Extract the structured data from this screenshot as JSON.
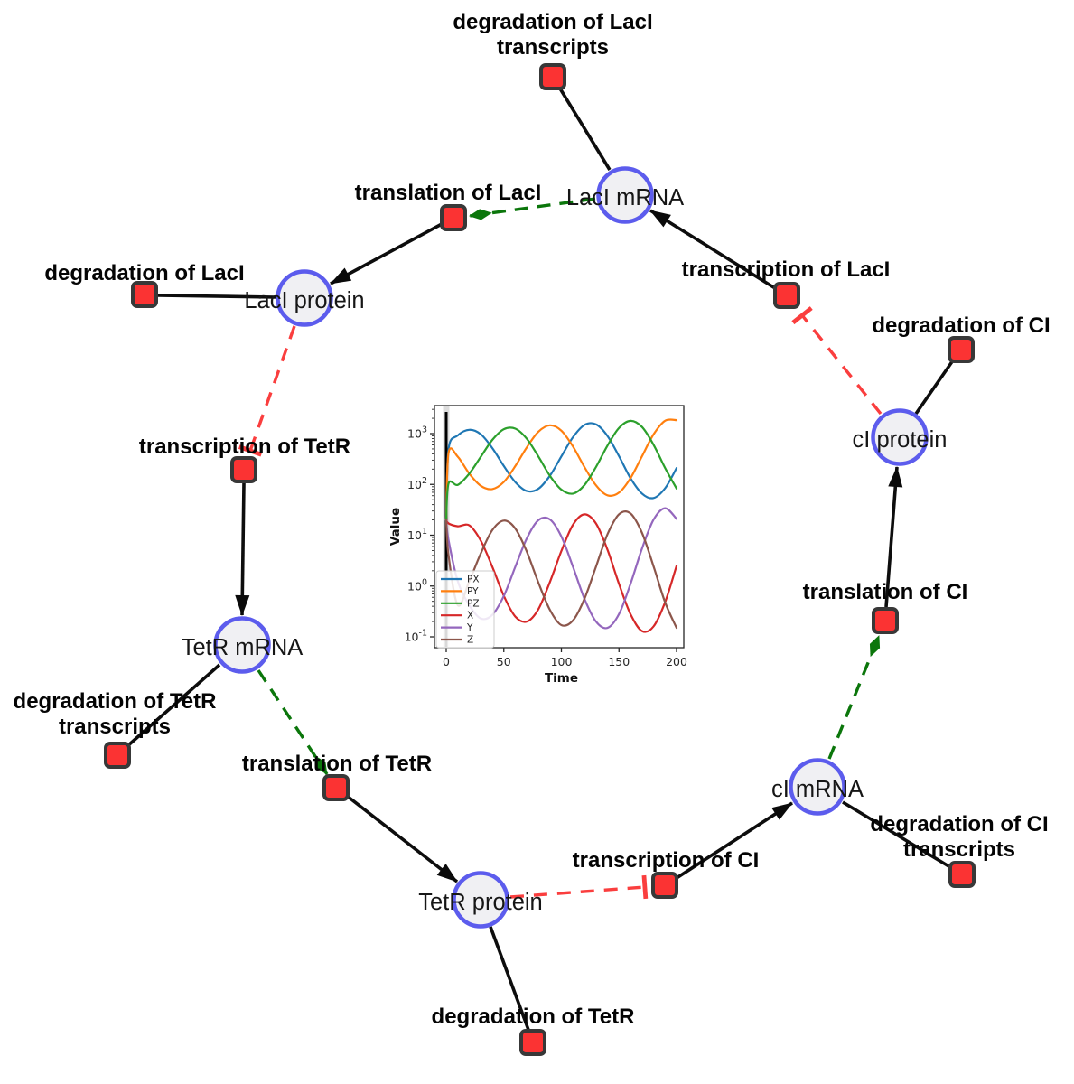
{
  "network": {
    "species": [
      {
        "id": "laci-mrna",
        "label": "LacI mRNA"
      },
      {
        "id": "laci-protein",
        "label": "LacI protein"
      },
      {
        "id": "tetr-mrna",
        "label": "TetR mRNA"
      },
      {
        "id": "tetr-protein",
        "label": "TetR protein"
      },
      {
        "id": "ci-mrna",
        "label": "cI mRNA"
      },
      {
        "id": "ci-protein",
        "label": "cI protein"
      }
    ],
    "reactions": [
      {
        "id": "degradation-laci-transcripts",
        "label": "degradation of LacI",
        "label2": "transcripts"
      },
      {
        "id": "translation-laci",
        "label": "translation of LacI"
      },
      {
        "id": "degradation-laci",
        "label": "degradation of LacI"
      },
      {
        "id": "transcription-laci",
        "label": "transcription of LacI"
      },
      {
        "id": "degradation-ci",
        "label": "degradation of CI"
      },
      {
        "id": "transcription-tetr",
        "label": "transcription of TetR"
      },
      {
        "id": "degradation-tetr-transcripts",
        "label": "degradation of TetR",
        "label2": "transcripts"
      },
      {
        "id": "translation-tetr",
        "label": "translation of TetR"
      },
      {
        "id": "degradation-tetr",
        "label": "degradation of TetR"
      },
      {
        "id": "transcription-ci",
        "label": "transcription of CI"
      },
      {
        "id": "degradation-ci-transcripts",
        "label": "degradation of CI",
        "label2": "transcripts"
      },
      {
        "id": "translation-ci",
        "label": "translation of CI"
      }
    ],
    "colors": {
      "species_fill": "#f0f0f3",
      "species_border": "#5c5ced",
      "reaction_fill": "#fb3333",
      "reaction_border": "#383838",
      "consumption_edge": "#0d0d0d",
      "modifier_edge": "#0b760b",
      "inhibition_edge": "#fa3e3e"
    }
  },
  "chart_data": {
    "type": "line",
    "title": "",
    "xlabel": "Time",
    "ylabel": "Value",
    "y_scale": "log",
    "x_ticks": [
      0,
      50,
      100,
      150,
      200
    ],
    "y_tick_exponents": [
      3,
      2,
      1,
      0,
      -1
    ],
    "xlim": [
      -12,
      206
    ],
    "ylim": [
      0.06,
      4000
    ],
    "grid": false,
    "legend_position": "lower left",
    "vline_x": 0,
    "x": [
      0,
      2,
      10,
      20,
      30,
      40,
      50,
      60,
      70,
      80,
      90,
      100,
      110,
      120,
      130,
      140,
      150,
      160,
      170,
      180,
      190,
      200
    ],
    "series": [
      {
        "name": "PX",
        "color": "#1f77b4",
        "values": [
          20,
          500,
          920,
          1190,
          970,
          520,
          230,
          111,
          74,
          82,
          148,
          356,
          850,
          1480,
          1520,
          900,
          360,
          133,
          66,
          54,
          84,
          210
        ]
      },
      {
        "name": "PY",
        "color": "#ff7f0e",
        "values": [
          20,
          420,
          350,
          163,
          94,
          81,
          112,
          230,
          540,
          1090,
          1455,
          1140,
          560,
          220,
          96,
          61,
          69,
          133,
          360,
          965,
          1790,
          1840
        ]
      },
      {
        "name": "PZ",
        "color": "#2ca02c",
        "values": [
          20,
          105,
          98,
          163,
          350,
          750,
          1220,
          1250,
          790,
          355,
          148,
          79,
          66,
          97,
          220,
          580,
          1290,
          1780,
          1350,
          605,
          211,
          83
        ]
      },
      {
        "name": "X",
        "color": "#d62728",
        "values": [
          20,
          17,
          15,
          15.6,
          7.8,
          2.4,
          0.64,
          0.25,
          0.2,
          0.35,
          1.2,
          4.9,
          16,
          25.7,
          17,
          5.2,
          1.1,
          0.28,
          0.13,
          0.16,
          0.48,
          2.5
        ]
      },
      {
        "name": "Y",
        "color": "#9467bd",
        "values": [
          20,
          8,
          1.25,
          0.42,
          0.23,
          0.27,
          0.64,
          2.4,
          8.7,
          19.7,
          20.5,
          9.4,
          2.4,
          0.56,
          0.2,
          0.15,
          0.28,
          1.1,
          5.5,
          20.2,
          34,
          21
        ]
      },
      {
        "name": "Z",
        "color": "#8c564b",
        "values": [
          20,
          4,
          0.42,
          1.24,
          4.4,
          12.6,
          19.4,
          13.5,
          4.7,
          1.17,
          0.34,
          0.17,
          0.21,
          0.56,
          2.4,
          10.4,
          25.8,
          26.8,
          11.1,
          2.45,
          0.48,
          0.15
        ]
      }
    ]
  }
}
